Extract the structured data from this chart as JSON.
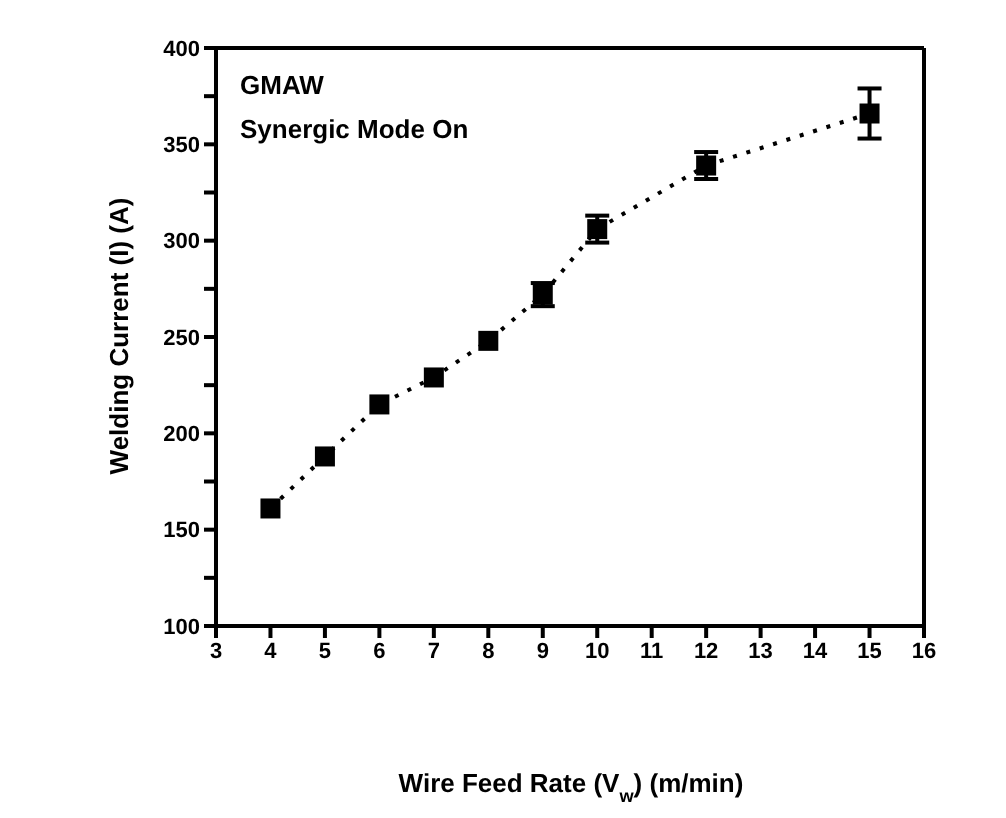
{
  "chart_data": {
    "type": "line",
    "xlabel": "Wire Feed Rate (V$_{w}$) (m/min)",
    "ylabel": "Welding Current (I) (A)",
    "annotations": [
      "GMAW",
      "Synergic Mode On"
    ],
    "x": [
      4,
      5,
      6,
      7,
      8,
      9,
      10,
      12,
      15
    ],
    "series": [
      {
        "color": "#000000",
        "values": [
          161,
          188,
          215,
          229,
          248,
          272,
          306,
          339,
          366
        ],
        "errors": [
          null,
          null,
          null,
          null,
          null,
          6,
          7,
          7,
          13
        ]
      }
    ],
    "xlim": [
      3,
      16
    ],
    "xticks": [
      3,
      4,
      5,
      6,
      7,
      8,
      9,
      10,
      11,
      12,
      13,
      14,
      15,
      16
    ],
    "ylim": [
      100,
      400
    ],
    "yticks": [
      100,
      {
        "value": 125,
        "label": null
      },
      150,
      {
        "value": 175,
        "label": null
      },
      200,
      {
        "value": 225,
        "label": null
      },
      250,
      {
        "value": 275,
        "label": null
      },
      300,
      {
        "value": 325,
        "label": null
      },
      350,
      {
        "value": 375,
        "label": null
      },
      400
    ],
    "marker": "square",
    "line_style": "dotted",
    "grid": false,
    "legend": false
  }
}
